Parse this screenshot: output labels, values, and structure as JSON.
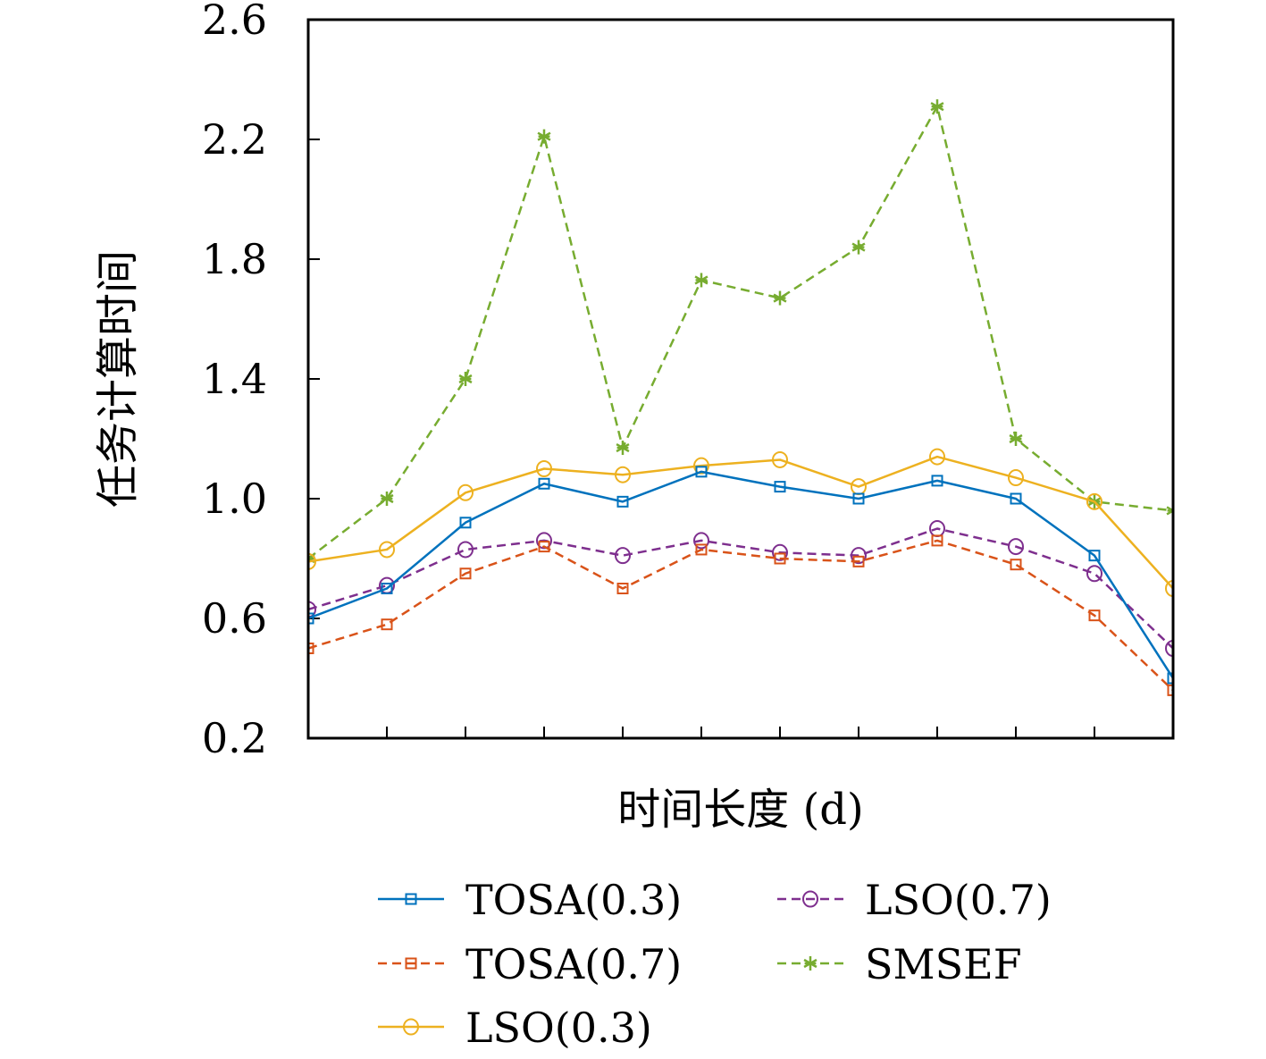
{
  "chart_data": {
    "type": "line",
    "title": "",
    "xlabel": "时间长度 (d)",
    "ylabel": "任务计算时间",
    "x": [
      0,
      1,
      2,
      3,
      4,
      5,
      6,
      7,
      8,
      9,
      10,
      11
    ],
    "xlim": [
      0,
      11
    ],
    "ylim": [
      0.2,
      2.6
    ],
    "yticks": [
      "0.2",
      "0.6",
      "1.0",
      "1.4",
      "1.8",
      "2.2",
      "2.6"
    ],
    "x_tick_labels_shown": false,
    "grid": false,
    "legend_position": "bottom",
    "series": [
      {
        "name": "TOSA(0.3)",
        "color": "#0072BD",
        "dash": "solid",
        "marker": "square",
        "values": [
          0.6,
          0.7,
          0.92,
          1.05,
          0.99,
          1.09,
          1.04,
          1.0,
          1.06,
          1.0,
          0.81,
          0.4
        ]
      },
      {
        "name": "TOSA(0.7)",
        "color": "#D95319",
        "dash": "dashed",
        "marker": "square",
        "values": [
          0.5,
          0.58,
          0.75,
          0.84,
          0.7,
          0.83,
          0.8,
          0.79,
          0.86,
          0.78,
          0.61,
          0.36
        ]
      },
      {
        "name": "LSO(0.3)",
        "color": "#EDB120",
        "dash": "solid",
        "marker": "circle",
        "values": [
          0.79,
          0.83,
          1.02,
          1.1,
          1.08,
          1.11,
          1.13,
          1.04,
          1.14,
          1.07,
          0.99,
          0.7
        ]
      },
      {
        "name": "LSO(0.7)",
        "color": "#7E2F8E",
        "dash": "dashed",
        "marker": "circle",
        "values": [
          0.63,
          0.71,
          0.83,
          0.86,
          0.81,
          0.86,
          0.82,
          0.81,
          0.9,
          0.84,
          0.75,
          0.5
        ]
      },
      {
        "name": "SMSEF",
        "color": "#77AC30",
        "dash": "dashed",
        "marker": "asterisk",
        "values": [
          0.8,
          1.0,
          1.4,
          2.21,
          1.17,
          1.73,
          1.67,
          1.84,
          2.31,
          1.2,
          0.99,
          0.96
        ]
      }
    ]
  }
}
